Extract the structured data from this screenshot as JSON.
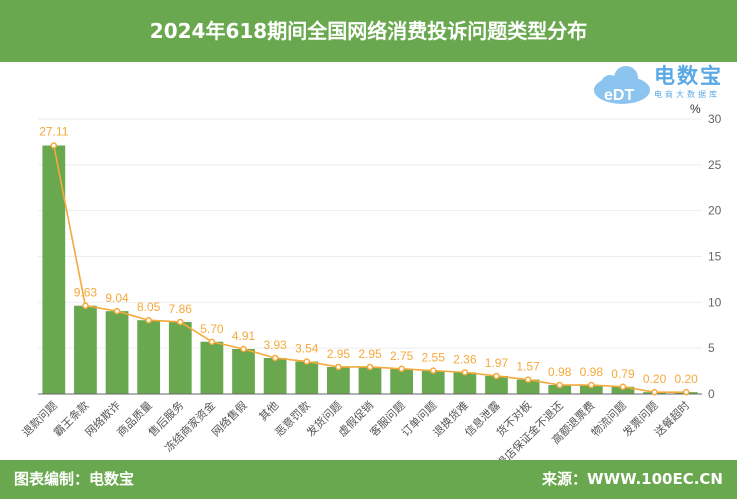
{
  "header": {
    "title": "2024年618期间全国网络消费投诉问题类型分布"
  },
  "logo": {
    "name": "电数宝",
    "tagline": "电商大数据库",
    "mark": "eDT"
  },
  "footer": {
    "left": "图表编制：电数宝",
    "right": "来源：WWW.100EC.CN"
  },
  "chart_data": {
    "type": "bar",
    "title": "2024年618期间全国网络消费投诉问题类型分布",
    "unit": "%",
    "categories": [
      "退款问题",
      "霸王条款",
      "网络欺诈",
      "商品质量",
      "售后服务",
      "冻结商家资金",
      "网络售假",
      "其他",
      "恶意罚款",
      "发货问题",
      "虚假促销",
      "客服问题",
      "订单问题",
      "退换货难",
      "信息泄露",
      "货不对板",
      "退店保证金不退还",
      "高额退票费",
      "物流问题",
      "发票问题",
      "送餐超时"
    ],
    "values": [
      27.11,
      9.63,
      9.04,
      8.05,
      7.86,
      5.7,
      4.91,
      3.93,
      3.54,
      2.95,
      2.95,
      2.75,
      2.55,
      2.36,
      1.97,
      1.57,
      0.98,
      0.98,
      0.79,
      0.2,
      0.2
    ],
    "labels": [
      "27.11",
      "9.63",
      "9.04",
      "8.05",
      "7.86",
      "5.70",
      "4.91",
      "3.93",
      "3.54",
      "2.95",
      "2.95",
      "2.75",
      "2.55",
      "2.36",
      "1.97",
      "1.57",
      "0.98",
      "0.98",
      "0.79",
      "0.20",
      "0.20"
    ],
    "yticks": [
      "0",
      "5",
      "10",
      "15",
      "20",
      "25",
      "30"
    ],
    "ylim": [
      0,
      30
    ],
    "grid": true,
    "colors": {
      "bar": "#6aa84f",
      "line": "#f5a93a",
      "label": "#f5a93a"
    }
  }
}
